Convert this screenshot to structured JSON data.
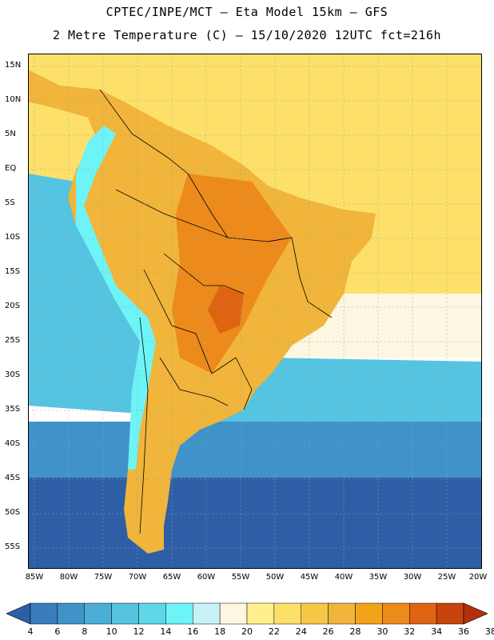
{
  "header": {
    "title_line1": "CPTEC/INPE/MCT –  Eta Model 15km – GFS",
    "title_line2": "2 Metre Temperature (C) – 15/10/2020 12UTC fct=216h"
  },
  "axes": {
    "lat_labels": [
      "15N",
      "10N",
      "5N",
      "EQ",
      "5S",
      "10S",
      "15S",
      "20S",
      "25S",
      "30S",
      "35S",
      "40S",
      "45S",
      "50S",
      "55S"
    ],
    "lon_labels": [
      "85W",
      "80W",
      "75W",
      "70W",
      "65W",
      "60W",
      "55W",
      "50W",
      "45W",
      "40W",
      "35W",
      "30W",
      "25W",
      "20W"
    ]
  },
  "colorbar": {
    "labels": [
      "4",
      "6",
      "8",
      "10",
      "12",
      "14",
      "16",
      "18",
      "20",
      "22",
      "24",
      "26",
      "28",
      "30",
      "32",
      "34",
      "36",
      "38"
    ],
    "colors": [
      "#2e5fa6",
      "#3a7cbd",
      "#3f93c9",
      "#4aaed6",
      "#55c4e0",
      "#5fd7e8",
      "#6ef4f7",
      "#c8f2f7",
      "#fdf6e0",
      "#fff08e",
      "#fde06a",
      "#f6c848",
      "#f0b53a",
      "#f2a31a",
      "#ec8a1c",
      "#de6412",
      "#c8440c",
      "#b5300a"
    ]
  },
  "map_colors": {
    "ocean_south": "#2e5fa6",
    "ocean_mid": "#3f93c9",
    "ocean_cyan": "#55c4e0",
    "ocean_warm": "#fdf6e0",
    "ocean_tropic": "#fde06a",
    "land_warm": "#f0b53a",
    "land_hot": "#ec8a1c",
    "land_hottest": "#de6412",
    "andes": "#6ef4f7",
    "border": "#000000"
  }
}
